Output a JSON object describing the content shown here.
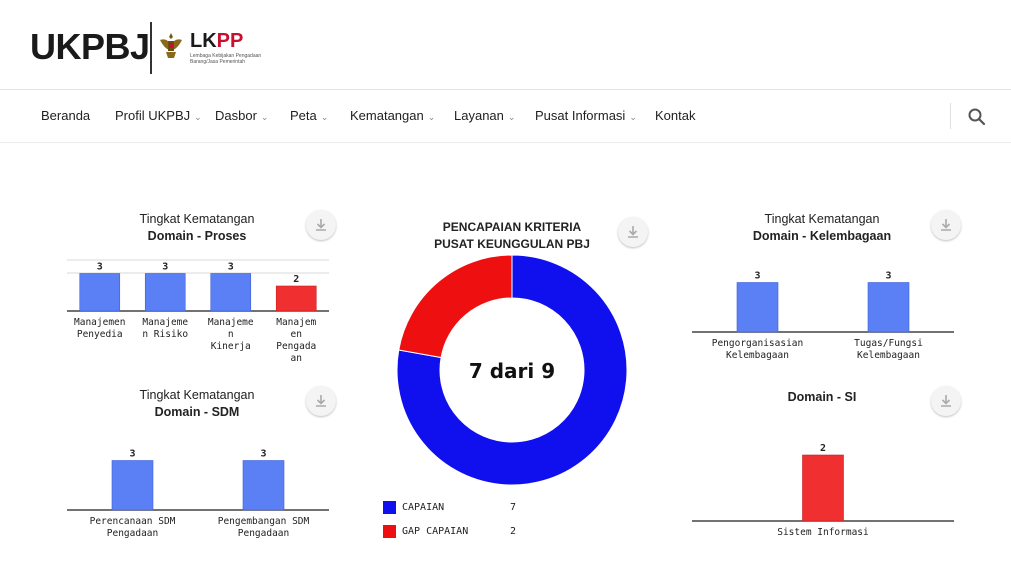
{
  "header": {
    "brand": "UKPBJ",
    "lkpp_left": "LK",
    "lkpp_right": "PP",
    "lkpp_subtitle": "Lembaga Kebijakan Pengadaan Barang/Jasa Pemerintah"
  },
  "nav": {
    "items": [
      {
        "label": "Beranda",
        "dropdown": false
      },
      {
        "label": "Profil UKPBJ",
        "dropdown": true
      },
      {
        "label": "Dasbor",
        "dropdown": true
      },
      {
        "label": "Peta",
        "dropdown": true
      },
      {
        "label": "Kematangan",
        "dropdown": true
      },
      {
        "label": "Layanan",
        "dropdown": true
      },
      {
        "label": "Pusat Informasi",
        "dropdown": true
      },
      {
        "label": "Kontak",
        "dropdown": false
      }
    ]
  },
  "chart_data": [
    {
      "id": "proses",
      "type": "bar",
      "title": "Tingkat Kematangan",
      "subtitle": "Domain - Proses",
      "categories": [
        "Manajemen Penyedia",
        "Manajemen Risiko",
        "Manajemen Kinerja",
        "Manajemen Pengadaan"
      ],
      "category_lines": [
        [
          "Manajemen",
          "Penyedia"
        ],
        [
          "Manajeme",
          "n Risiko"
        ],
        [
          "Manajeme",
          "n",
          "Kinerja"
        ],
        [
          "Manajem",
          "en",
          "Pengada",
          "an"
        ]
      ],
      "values": [
        3,
        3,
        3,
        2
      ],
      "colors": [
        "#5b7ff5",
        "#5b7ff5",
        "#5b7ff5",
        "#f03030"
      ]
    },
    {
      "id": "sdm",
      "type": "bar",
      "title": "Tingkat Kematangan",
      "subtitle": "Domain - SDM",
      "categories": [
        "Perencanaan SDM Pengadaan",
        "Pengembangan SDM Pengadaan"
      ],
      "category_lines": [
        [
          "Perencanaan SDM",
          "Pengadaan"
        ],
        [
          "Pengembangan SDM",
          "Pengadaan"
        ]
      ],
      "values": [
        3,
        3
      ],
      "colors": [
        "#5b7ff5",
        "#5b7ff5"
      ]
    },
    {
      "id": "pencapaian",
      "type": "pie",
      "title": "PENCAPAIAN KRITERIA",
      "subtitle": "PUSAT KEUNGGULAN PBJ",
      "center_label": "7 dari 9",
      "categories": [
        "CAPAIAN",
        "GAP CAPAIAN"
      ],
      "values": [
        7,
        2
      ],
      "colors": [
        "#1010ee",
        "#ee1010"
      ]
    },
    {
      "id": "kelembagaan",
      "type": "bar",
      "title": "Tingkat Kematangan",
      "subtitle": "Domain - Kelembagaan",
      "categories": [
        "Pengorganisasian Kelembagaan",
        "Tugas/Fungsi Kelembagaan"
      ],
      "category_lines": [
        [
          "Pengorganisasian",
          "Kelembagaan"
        ],
        [
          "Tugas/Fungsi",
          "Kelembagaan"
        ]
      ],
      "values": [
        3,
        3
      ],
      "colors": [
        "#5b7ff5",
        "#5b7ff5"
      ]
    },
    {
      "id": "si",
      "type": "bar",
      "title": "",
      "subtitle": "Domain - SI",
      "categories": [
        "Sistem Informasi"
      ],
      "category_lines": [
        [
          "Sistem Informasi"
        ]
      ],
      "values": [
        2
      ],
      "colors": [
        "#f03030"
      ]
    }
  ]
}
